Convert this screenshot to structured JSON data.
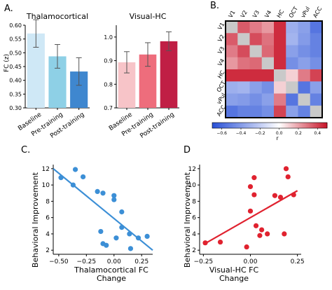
{
  "chart_data": [
    {
      "panel": "A.",
      "type": "bar",
      "title": "Thalamocortical",
      "ylabel": "FC (z)",
      "categories": [
        "Baseline",
        "Pre-training",
        "Post-training"
      ],
      "values": [
        0.57,
        0.487,
        0.432
      ],
      "errors": [
        0.05,
        0.043,
        0.05
      ],
      "colors": [
        "#cfe8f6",
        "#8ed0e6",
        "#3f87cf"
      ],
      "ylim": [
        0.3,
        0.6
      ],
      "yticks": [
        0.3,
        0.35,
        0.4,
        0.45,
        0.5,
        0.55,
        0.6
      ],
      "ytick_labels": [
        "0.30",
        "0.35",
        "0.40",
        "0.45",
        "0.50",
        "0.55",
        "0.60"
      ]
    },
    {
      "type": "bar",
      "title": "Visual-HC",
      "categories": [
        "Baseline",
        "Pre-training",
        "Post-training"
      ],
      "values": [
        0.893,
        0.926,
        0.982
      ],
      "errors": [
        0.045,
        0.05,
        0.04
      ],
      "colors": [
        "#f7c4c8",
        "#ee6d7c",
        "#c01f45"
      ],
      "ylim": [
        0.7,
        1.05
      ],
      "yticks": [
        0.7,
        0.8,
        0.9,
        1.0
      ],
      "ytick_labels": [
        "0.7",
        "0.8",
        "0.9",
        "1.0"
      ]
    },
    {
      "panel": "B.",
      "type": "heatmap",
      "labels": [
        "V1",
        "V2",
        "V3",
        "V4",
        "HC",
        "OCT",
        "vPul",
        "ACC"
      ],
      "colorbar": {
        "label": "r",
        "ticks": [
          -0.6,
          -0.4,
          -0.2,
          0,
          0.2,
          0.4
        ],
        "tick_labels": [
          "−0.6",
          "−0.4",
          "−0.2",
          "0.0",
          "0.2",
          "0.4"
        ],
        "range": [
          -0.7,
          0.5
        ]
      },
      "matrix": [
        [
          0.0,
          0.35,
          0.28,
          0.22,
          0.45,
          -0.32,
          -0.38,
          -0.55
        ],
        [
          0.35,
          0.0,
          0.38,
          0.3,
          0.45,
          -0.3,
          -0.4,
          -0.5
        ],
        [
          0.28,
          0.38,
          0.0,
          0.32,
          0.45,
          -0.38,
          -0.45,
          -0.5
        ],
        [
          0.22,
          0.3,
          0.32,
          0.0,
          0.45,
          -0.45,
          -0.38,
          -0.45
        ],
        [
          0.45,
          0.45,
          0.45,
          0.45,
          0.0,
          0.1,
          0.28,
          0.4
        ],
        [
          -0.32,
          -0.3,
          -0.38,
          -0.45,
          0.1,
          0.0,
          -0.55,
          -0.38
        ],
        [
          -0.38,
          -0.4,
          -0.45,
          -0.38,
          0.28,
          -0.55,
          0.0,
          -0.5
        ],
        [
          -0.55,
          -0.5,
          -0.5,
          -0.45,
          0.4,
          -0.38,
          -0.5,
          0.0
        ]
      ]
    },
    {
      "panel": "C.",
      "type": "scatter",
      "xlabel": "Thalamocortical FC\nChange",
      "ylabel": "Behavioral Improvement",
      "color": "#3c8fd6",
      "xlim": [
        -0.55,
        0.35
      ],
      "ylim": [
        1.5,
        12.5
      ],
      "xticks": [
        -0.5,
        -0.25,
        0.0,
        0.25
      ],
      "xtick_labels": [
        "−0.50",
        "−0.25",
        "0.00",
        "0.25"
      ],
      "yticks": [
        2,
        4,
        6,
        8,
        10,
        12
      ],
      "points": [
        [
          -0.48,
          10.9
        ],
        [
          -0.37,
          10.0
        ],
        [
          -0.35,
          11.9
        ],
        [
          -0.28,
          11.0
        ],
        [
          -0.15,
          9.2
        ],
        [
          -0.1,
          9.0
        ],
        [
          0.0,
          8.7
        ],
        [
          0.0,
          8.2
        ],
        [
          -0.12,
          4.3
        ],
        [
          -0.1,
          2.8
        ],
        [
          -0.07,
          2.6
        ],
        [
          0.02,
          3.5
        ],
        [
          0.07,
          6.7
        ],
        [
          0.07,
          4.8
        ],
        [
          0.14,
          4.0
        ],
        [
          0.15,
          2.2
        ],
        [
          0.22,
          3.5
        ],
        [
          0.3,
          3.7
        ]
      ],
      "fit": [
        [
          -0.55,
          12.0
        ],
        [
          0.35,
          2.0
        ]
      ]
    },
    {
      "panel": "D",
      "type": "scatter",
      "xlabel": "Visual-HC FC\nChange",
      "ylabel": "Behavioral Improvement",
      "color": "#e0222f",
      "xlim": [
        -0.27,
        0.27
      ],
      "ylim": [
        1.5,
        12.5
      ],
      "xticks": [
        -0.25,
        0.0,
        0.25
      ],
      "xtick_labels": [
        "−0.25",
        "0.00",
        "0.25"
      ],
      "yticks": [
        2,
        4,
        6,
        8,
        10,
        12
      ],
      "points": [
        [
          -0.24,
          2.9
        ],
        [
          -0.16,
          3.0
        ],
        [
          -0.02,
          2.4
        ],
        [
          0.0,
          6.8
        ],
        [
          0.0,
          9.8
        ],
        [
          0.02,
          10.9
        ],
        [
          0.02,
          8.8
        ],
        [
          0.03,
          5.0
        ],
        [
          0.05,
          3.8
        ],
        [
          0.06,
          4.5
        ],
        [
          0.09,
          4.0
        ],
        [
          0.13,
          8.7
        ],
        [
          0.16,
          8.5
        ],
        [
          0.18,
          4.0
        ],
        [
          0.19,
          12.0
        ],
        [
          0.2,
          11.0
        ],
        [
          0.23,
          8.8
        ]
      ],
      "fit": [
        [
          -0.25,
          2.7
        ],
        [
          0.25,
          9.3
        ]
      ]
    }
  ]
}
